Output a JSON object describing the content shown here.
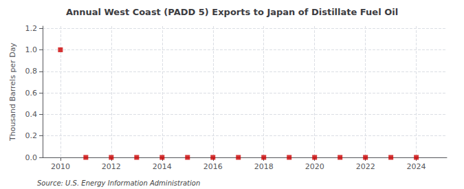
{
  "chart_data": {
    "type": "scatter",
    "title": "Annual West Coast (PADD 5) Exports to Japan of Distillate Fuel Oil",
    "ylabel": "Thousand Barrels per Day",
    "annotations": [
      "Source: U.S. Energy Information Administration"
    ],
    "x": [
      2010,
      2011,
      2012,
      2013,
      2014,
      2015,
      2016,
      2017,
      2018,
      2019,
      2020,
      2021,
      2022,
      2023,
      2024
    ],
    "values": [
      1.0,
      0.0,
      0.0,
      0.0,
      0.0,
      0.0,
      0.0,
      0.0,
      0.0,
      0.0,
      0.0,
      0.0,
      0.0,
      0.0,
      0.0
    ],
    "color": "#cc0000",
    "marker": "square",
    "xlim": [
      2009.3,
      2025.2
    ],
    "xticks": [
      2010,
      2012,
      2014,
      2016,
      2018,
      2020,
      2022,
      2024
    ],
    "ylim": [
      0.0,
      1.22
    ],
    "yticks": [
      {
        "value": 0.0,
        "label": "0.0"
      },
      0.2,
      0.4,
      0.6,
      0.8,
      {
        "value": 1.0,
        "label": "1.0"
      },
      1.2
    ],
    "grid": true
  }
}
